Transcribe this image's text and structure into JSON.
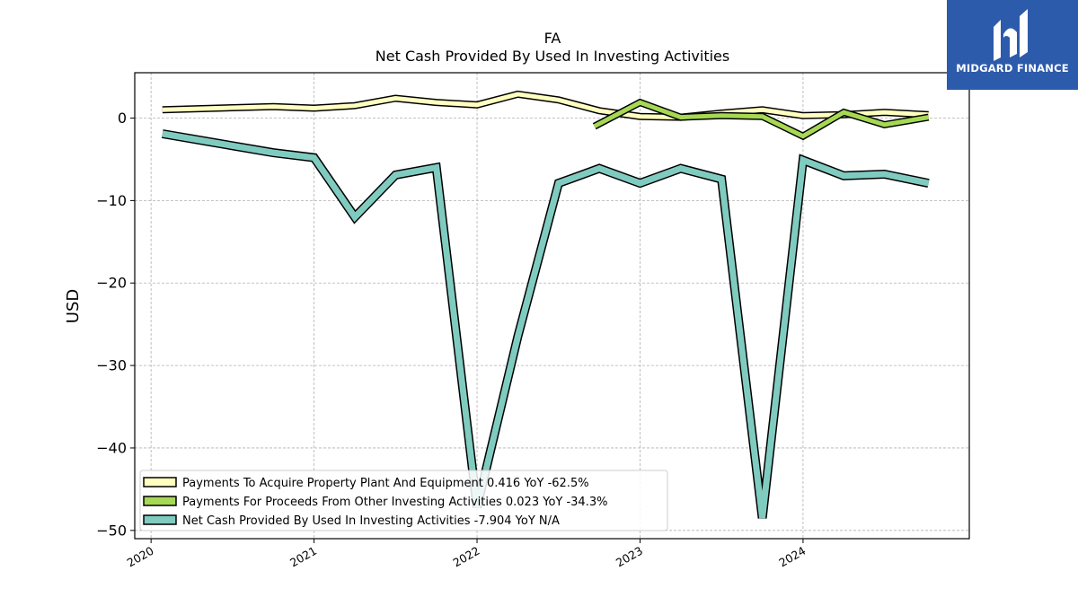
{
  "chart_data": {
    "type": "line",
    "title": "FA",
    "subtitle": "Net Cash Provided By Used In Investing Activities",
    "ylabel": "USD",
    "xlabel": "",
    "ylim": [
      -51,
      5.5
    ],
    "xlim": [
      2019.9,
      2025.02
    ],
    "grid": true,
    "legend_position": "lower-left",
    "x_ticks": [
      2020,
      2021,
      2022,
      2023,
      2024
    ],
    "y_ticks": [
      0,
      -10,
      -20,
      -30,
      -40,
      -50
    ],
    "y_tick_labels": [
      "0",
      "−10",
      "−20",
      "−30",
      "−40",
      "−50"
    ],
    "series": [
      {
        "name": "Payments To Acquire Property Plant And Equipment",
        "legend_label": "Payments To Acquire Property Plant And Equipment  0.416 YoY -62.5%",
        "color": "#ffffc0",
        "width": 5,
        "x": [
          2020.07,
          2020.75,
          2021.0,
          2021.25,
          2021.5,
          2021.75,
          2022.0,
          2022.25,
          2022.5,
          2022.75,
          2023.0,
          2023.25,
          2023.5,
          2023.75,
          2024.0,
          2024.25,
          2024.5,
          2024.77
        ],
        "y": [
          1.0,
          1.4,
          1.2,
          1.5,
          2.4,
          1.9,
          1.6,
          2.9,
          2.2,
          0.9,
          0.2,
          0.1,
          0.6,
          1.0,
          0.3,
          0.4,
          0.7,
          0.4
        ]
      },
      {
        "name": "Payments For Proceeds From Other Investing Activities",
        "legend_label": "Payments For Proceeds From Other Investing Activities  0.023 YoY -34.3%",
        "color": "#a6d854",
        "width": 5,
        "x": [
          2022.72,
          2023.0,
          2023.25,
          2023.5,
          2023.75,
          2024.0,
          2024.25,
          2024.5,
          2024.77
        ],
        "y": [
          -1.0,
          1.9,
          0.1,
          0.3,
          0.2,
          -2.2,
          0.7,
          -0.8,
          0.1
        ]
      },
      {
        "name": "Net Cash Provided By Used In Investing Activities",
        "legend_label": "Net Cash Provided By Used In Investing Activities  -7.904 YoY N/A",
        "color": "#80cbc0",
        "width": 7,
        "x": [
          2020.07,
          2020.75,
          2021.0,
          2021.25,
          2021.5,
          2021.75,
          2022.0,
          2022.25,
          2022.5,
          2022.75,
          2023.0,
          2023.25,
          2023.5,
          2023.75,
          2024.0,
          2024.25,
          2024.5,
          2024.77
        ],
        "y": [
          -1.9,
          -4.2,
          -4.8,
          -12.0,
          -6.9,
          -6.0,
          -47.2,
          -26.5,
          -7.9,
          -6.1,
          -7.9,
          -6.1,
          -7.4,
          -48.5,
          -5.1,
          -7.0,
          -6.8,
          -7.9
        ]
      }
    ]
  },
  "logo": {
    "text": "MIDGARD FINANCE",
    "background": "#2d5bab"
  }
}
